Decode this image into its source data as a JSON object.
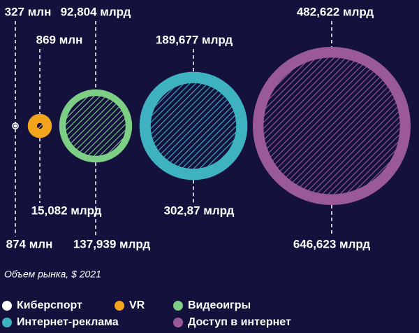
{
  "chart_data": {
    "type": "bubble",
    "categories": [
      "Киберспорт",
      "VR",
      "Видеоигры",
      "Интернет-реклама",
      "Доступ в интернет"
    ],
    "colors": [
      "#ffffff",
      "#f2a51c",
      "#7dcf86",
      "#3eb2c1",
      "#9a5a99"
    ],
    "inner": {
      "values": [
        0.327,
        0.869,
        92.804,
        189.677,
        482.622
      ],
      "value_labels": [
        "327 млн",
        "869 млн",
        "92,804 млрд",
        "189,677 млрд",
        "482,622 млрд"
      ]
    },
    "outer": {
      "values": [
        0.874,
        15.082,
        137.939,
        302.87,
        646.623
      ],
      "value_labels": [
        "874 млн",
        "15,082 млрд",
        "137,939 млрд",
        "302,87 млрд",
        "646,623 млрд"
      ]
    },
    "note": "Объем рынка, $ 2021"
  }
}
